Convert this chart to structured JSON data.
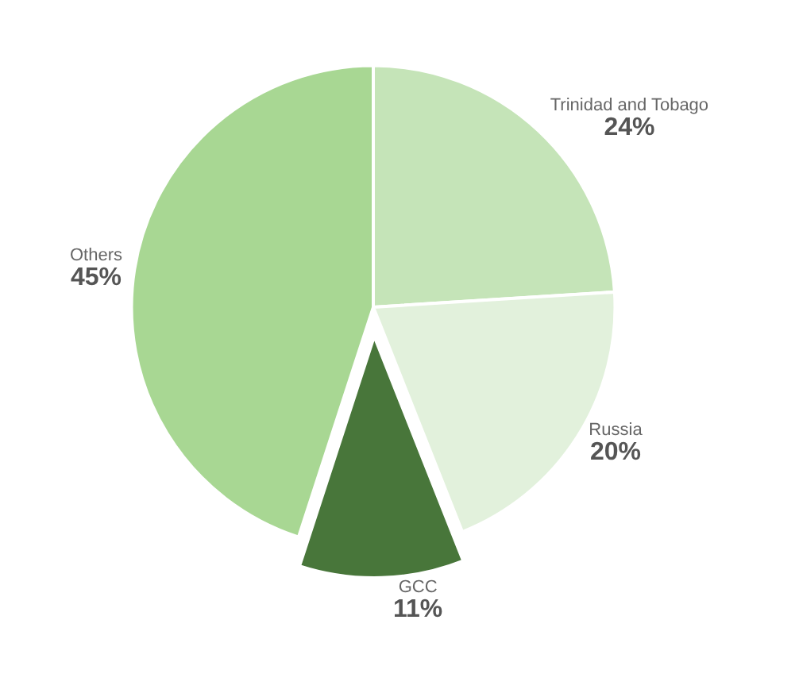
{
  "chart_data": {
    "type": "pie",
    "categories": [
      "Trinidad and Tobago",
      "Russia",
      "GCC",
      "Others"
    ],
    "values": [
      24,
      20,
      11,
      45
    ],
    "value_labels": [
      "24%",
      "20%",
      "11%",
      "45%"
    ],
    "colors": [
      "#c5e4b8",
      "#e2f1dc",
      "#48763a",
      "#a8d793"
    ],
    "legend": false
  }
}
